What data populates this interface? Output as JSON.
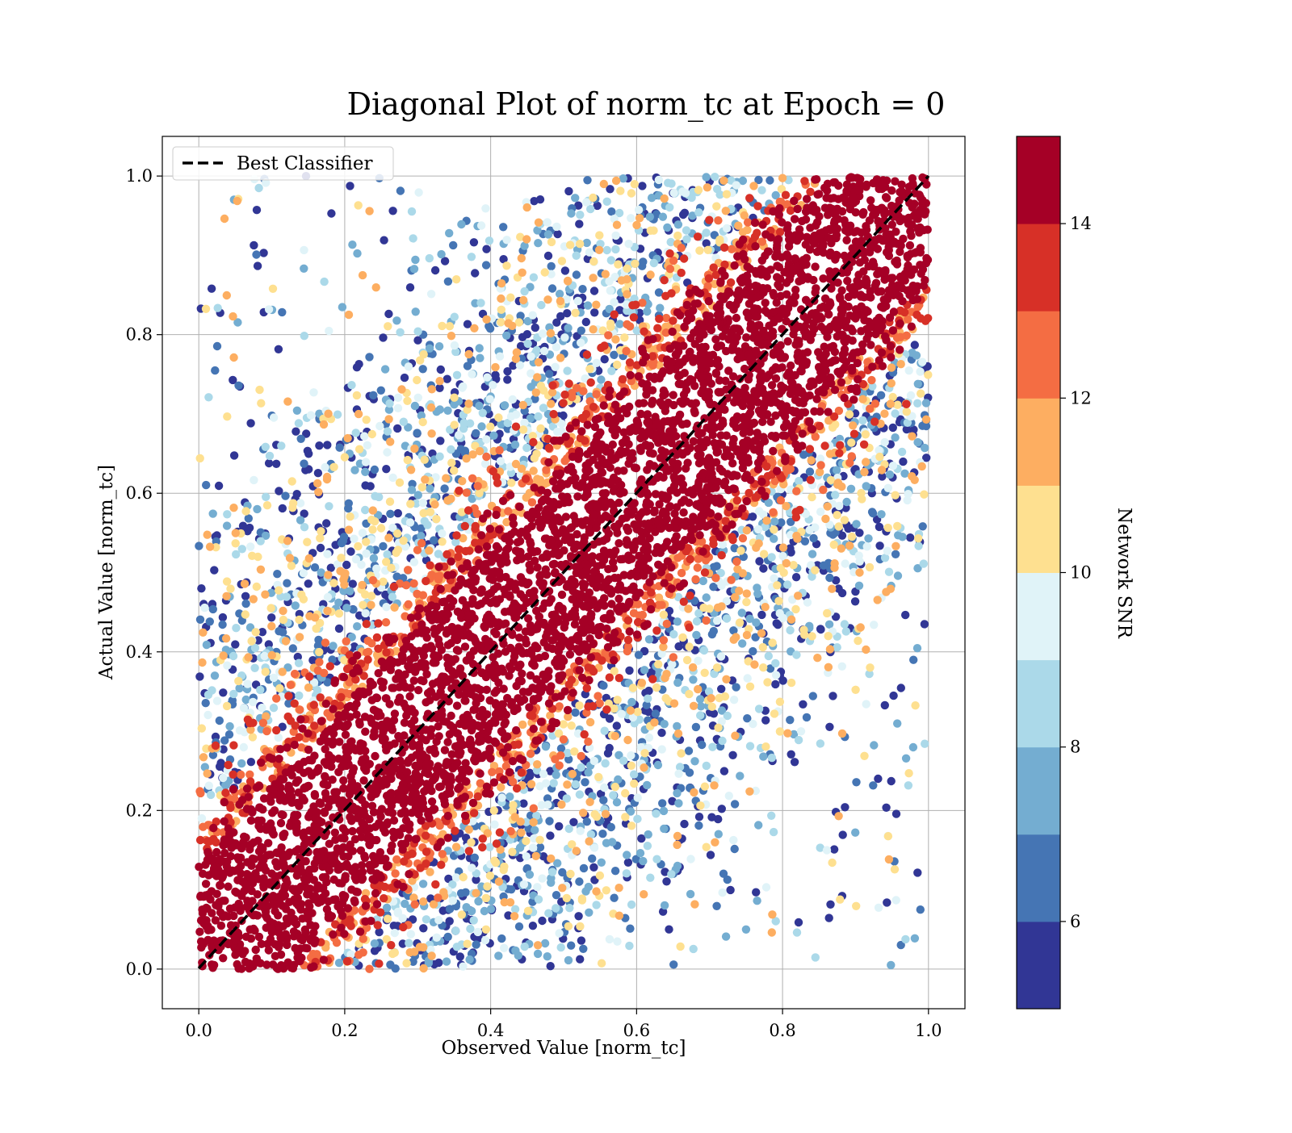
{
  "chart_data": {
    "type": "scatter",
    "title": "Diagonal Plot of norm_tc at Epoch = 0",
    "xlabel": "Observed Value [norm_tc]",
    "ylabel": "Actual Value [norm_tc]",
    "xlim": [
      -0.05,
      1.05
    ],
    "ylim": [
      -0.05,
      1.05
    ],
    "xticks": [
      0.0,
      0.2,
      0.4,
      0.6,
      0.8,
      1.0
    ],
    "yticks": [
      0.0,
      0.2,
      0.4,
      0.6,
      0.8,
      1.0
    ],
    "xtick_labels": [
      "0.0",
      "0.2",
      "0.4",
      "0.6",
      "0.8",
      "1.0"
    ],
    "ytick_labels": [
      "0.0",
      "0.2",
      "0.4",
      "0.6",
      "0.8",
      "1.0"
    ],
    "grid": true,
    "legend": {
      "placement": "upper-left",
      "entries": [
        {
          "label": "Best Classifier",
          "style": "dashed",
          "color": "#000000"
        }
      ]
    },
    "reference_line": {
      "from": [
        0.0,
        0.0
      ],
      "to": [
        1.0,
        1.0
      ]
    },
    "colorbar": {
      "label": "Network SNR",
      "range": [
        5,
        15
      ],
      "ticks": [
        6,
        8,
        10,
        12,
        14
      ],
      "tick_labels": [
        "6",
        "8",
        "10",
        "12",
        "14"
      ],
      "colors": [
        "#313695",
        "#4575b4",
        "#74add1",
        "#abd9e9",
        "#e0f3f8",
        "#fee090",
        "#fdae61",
        "#f46d43",
        "#d73027",
        "#a50026"
      ]
    },
    "trend": {
      "relation": "actual ≈ observed",
      "high_snr_band_halfwidth": 0.15,
      "low_snr_scatter": "wide, widening toward x = 0.4–0.8"
    }
  }
}
